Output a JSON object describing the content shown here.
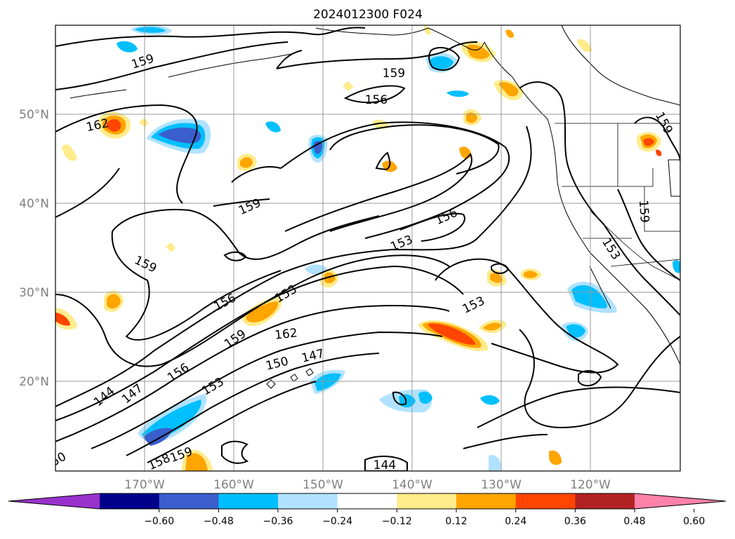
{
  "map": {
    "title": "2024012300 F024",
    "lat_labels": [
      "50°N",
      "40°N",
      "30°N",
      "20°N"
    ],
    "lon_labels": [
      "170°W",
      "160°W",
      "150°W",
      "140°W",
      "130°W",
      "120°W"
    ],
    "contour_labels": [
      "159",
      "162",
      "159",
      "159",
      "156",
      "159",
      "159",
      "156",
      "153",
      "156",
      "153",
      "159",
      "162",
      "150",
      "147",
      "156",
      "153",
      "144",
      "147",
      "158",
      "159",
      "144",
      "153",
      "159",
      "153",
      "50"
    ]
  },
  "colorbar": {
    "colors": [
      "#9932cc",
      "#00008b",
      "#3a5fcd",
      "#00bfff",
      "#b0e2ff",
      "#ffffff",
      "#ffec8b",
      "#ffa500",
      "#ff4500",
      "#b22222",
      "#ff82ab"
    ],
    "tick_labels": [
      "−0.60",
      "−0.48",
      "−0.36",
      "−0.24",
      "−0.12",
      "0.12",
      "0.24",
      "0.36",
      "0.48",
      "0.60"
    ]
  },
  "colors": {
    "contour": "#000000",
    "grid": "#999999",
    "neg_light": "#b0e2ff",
    "neg_mid": "#00bfff",
    "neg_dark": "#3a5fcd",
    "pos_light": "#ffec8b",
    "pos_mid": "#ffa500",
    "pos_dark": "#ff4500"
  }
}
